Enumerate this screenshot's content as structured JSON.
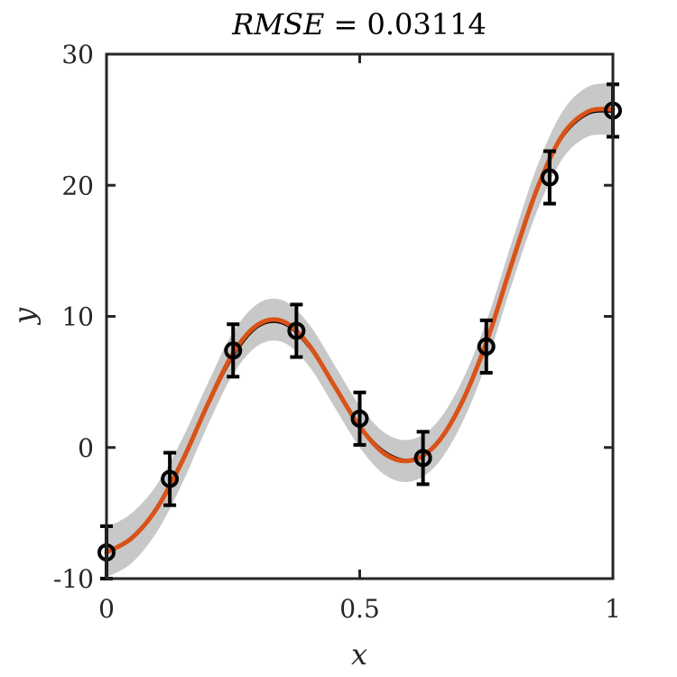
{
  "chart_data": {
    "type": "line",
    "title": "RMSE = 0.03114",
    "title_parts": {
      "lhs": "RMSE",
      "eq": " = ",
      "rhs": "0.03114"
    },
    "xlabel": "x",
    "ylabel": "y",
    "xlim": [
      0,
      1
    ],
    "ylim": [
      -10,
      30
    ],
    "xticks": [
      0,
      0.5,
      1
    ],
    "xtick_labels": [
      "0",
      "0.5",
      "1"
    ],
    "yticks": [
      -10,
      0,
      10,
      20,
      30
    ],
    "ytick_labels": [
      "-10",
      "0",
      "10",
      "20",
      "30"
    ],
    "grid": false,
    "colors": {
      "fit": "#d95319",
      "truth": "#000000",
      "band": "#c8c8c8",
      "points": "#000000",
      "axes": "#262626"
    },
    "series": [
      {
        "kind": "observations",
        "x": [
          0,
          0.125,
          0.25,
          0.375,
          0.5,
          0.625,
          0.75,
          0.875,
          1.0
        ],
        "y": [
          -8.0,
          -2.4,
          7.4,
          8.9,
          2.2,
          -0.8,
          7.7,
          20.6,
          25.7
        ],
        "error": [
          2.0,
          2.0,
          2.0,
          2.0,
          2.0,
          2.0,
          2.0,
          2.0,
          2.0
        ]
      },
      {
        "kind": "true-function",
        "x": [
          0,
          0.05,
          0.1,
          0.15,
          0.2,
          0.25,
          0.3,
          0.35,
          0.4,
          0.45,
          0.5,
          0.55,
          0.6,
          0.65,
          0.7,
          0.75,
          0.8,
          0.85,
          0.9,
          0.95,
          1.0
        ],
        "y": [
          -7.9,
          -6.9,
          -4.7,
          -1.2,
          3.1,
          6.9,
          9.2,
          9.4,
          7.6,
          4.6,
          1.7,
          -0.3,
          -0.9,
          0.3,
          3.4,
          8.1,
          14.1,
          19.7,
          23.6,
          25.4,
          25.6
        ]
      },
      {
        "kind": "fit-mean",
        "x": [
          0,
          0.05,
          0.1,
          0.15,
          0.2,
          0.25,
          0.3,
          0.35,
          0.4,
          0.45,
          0.5,
          0.55,
          0.6,
          0.65,
          0.7,
          0.75,
          0.8,
          0.85,
          0.9,
          0.95,
          1.0
        ],
        "y": [
          -8.0,
          -6.9,
          -4.6,
          -1.0,
          3.3,
          7.2,
          9.4,
          9.6,
          7.8,
          4.7,
          1.6,
          -0.5,
          -1.0,
          0.2,
          3.3,
          8.0,
          14.0,
          19.7,
          23.8,
          25.6,
          25.8
        ],
        "band_half_width": [
          1.9,
          1.9,
          1.8,
          1.7,
          1.6,
          1.6,
          1.6,
          1.6,
          1.6,
          1.6,
          1.6,
          1.6,
          1.6,
          1.6,
          1.6,
          1.6,
          1.6,
          1.7,
          1.8,
          1.9,
          2.0
        ]
      }
    ]
  }
}
